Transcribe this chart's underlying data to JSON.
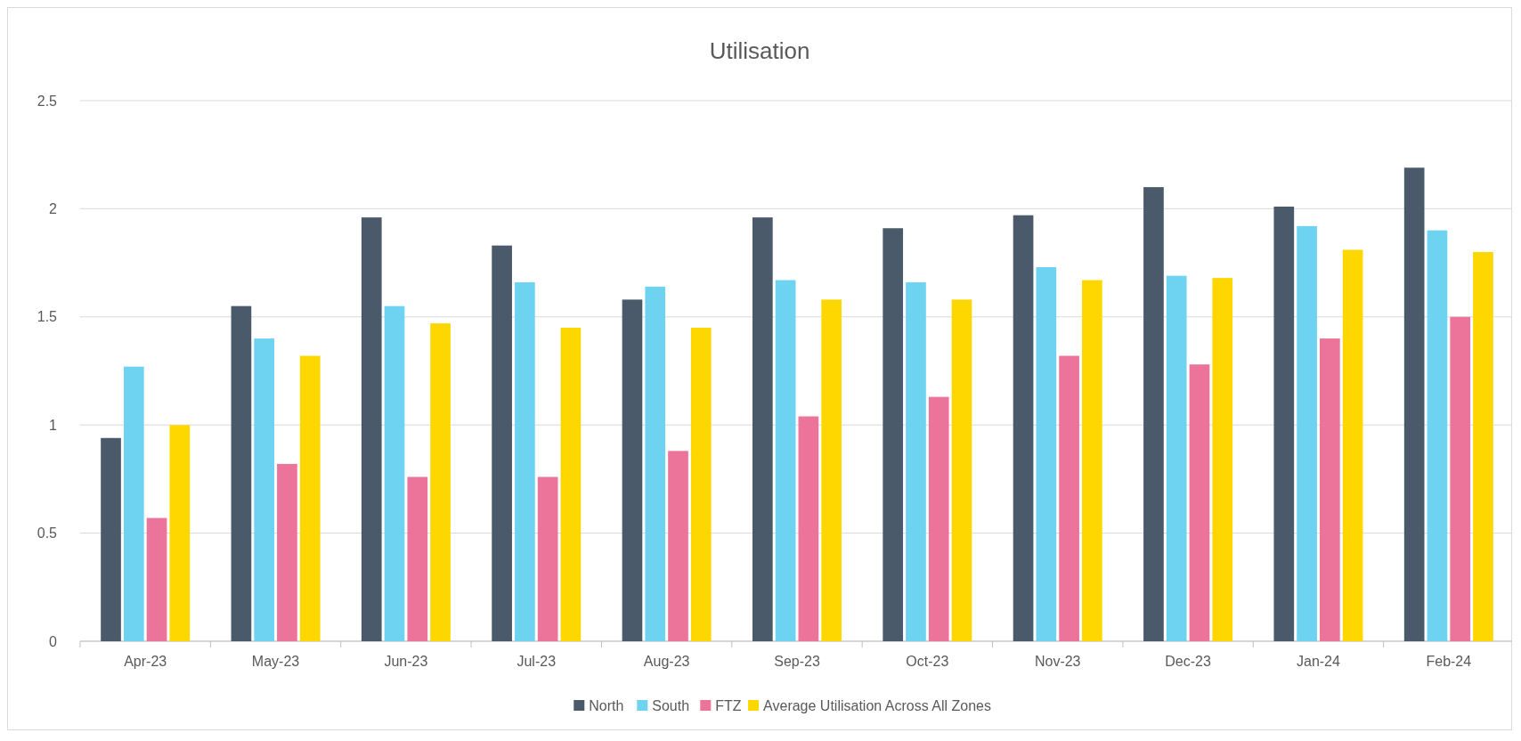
{
  "chart_data": {
    "type": "bar",
    "title": "Utilisation",
    "categories": [
      "Apr-23",
      "May-23",
      "Jun-23",
      "Jul-23",
      "Aug-23",
      "Sep-23",
      "Oct-23",
      "Nov-23",
      "Dec-23",
      "Jan-24",
      "Feb-24"
    ],
    "series": [
      {
        "name": "North",
        "color": "#4a5a6a",
        "values": [
          0.94,
          1.55,
          1.96,
          1.83,
          1.58,
          1.96,
          1.91,
          1.97,
          2.1,
          2.01,
          2.19
        ]
      },
      {
        "name": "South",
        "color": "#6dd3f0",
        "values": [
          1.27,
          1.4,
          1.55,
          1.66,
          1.64,
          1.67,
          1.66,
          1.73,
          1.69,
          1.92,
          1.9
        ]
      },
      {
        "name": "FTZ",
        "color": "#ec7399",
        "values": [
          0.57,
          0.82,
          0.76,
          0.76,
          0.88,
          1.04,
          1.13,
          1.32,
          1.28,
          1.4,
          1.5
        ]
      },
      {
        "name": "Average Utilisation Across All Zones",
        "color": "#ffd700",
        "values": [
          1.0,
          1.32,
          1.47,
          1.45,
          1.45,
          1.58,
          1.58,
          1.67,
          1.68,
          1.81,
          1.8
        ]
      }
    ],
    "ylim": [
      0,
      2.5
    ],
    "yticks": [
      0,
      0.5,
      1,
      1.5,
      2,
      2.5
    ],
    "grid": "y",
    "legend": "bottom"
  }
}
